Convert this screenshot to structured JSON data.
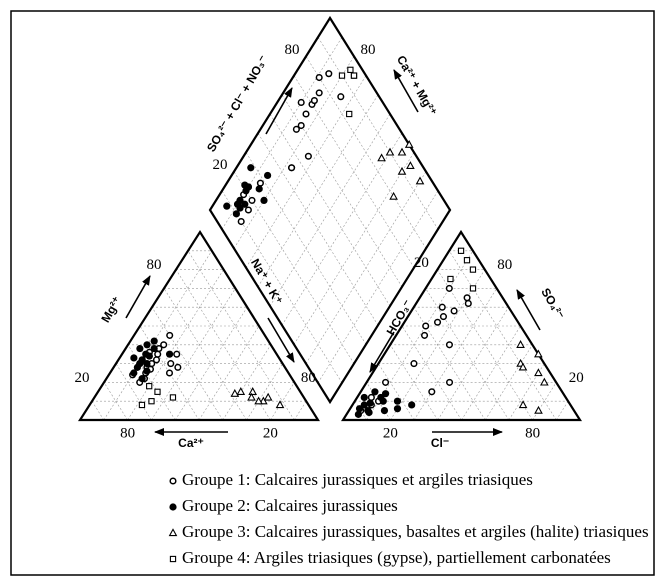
{
  "chart_data": {
    "type": "piper",
    "gridlines": [
      10,
      20,
      30,
      40,
      50,
      60,
      70,
      80,
      90
    ],
    "cation_triangle": {
      "mg_label": "Mg²⁺",
      "ca_label": "Ca²⁺",
      "nak_label": "Na⁺ + K⁺",
      "mg_ticks": [
        20,
        80
      ],
      "ca_ticks": [
        80,
        20
      ],
      "nak_ticks": [
        80
      ]
    },
    "anion_triangle": {
      "hco3_label": "HCO₃⁻",
      "so4_label": "SO₄²⁻",
      "cl_label": "Cl⁻",
      "hco3_ticks": [
        20
      ],
      "so4_ticks": [
        80,
        20
      ],
      "cl_ticks": [
        20,
        80
      ]
    },
    "diamond": {
      "left_label": "SO₄²⁻ + Cl⁻ + NO₃⁻",
      "right_label": "Ca²⁺ + Mg²⁺",
      "left_ticks": [
        80,
        20
      ],
      "right_ticks": [
        80
      ]
    },
    "series": [
      {
        "name": "Groupe 1: Calcaires jurassiques et argiles triasiques",
        "marker": "open-circle",
        "color": "#000000",
        "ca": [
          55,
          50,
          60,
          48,
          58,
          62,
          45,
          52,
          65,
          47,
          40,
          57,
          50,
          42,
          60,
          53,
          45,
          66
        ],
        "mg": [
          30,
          35,
          25,
          38,
          28,
          22,
          40,
          32,
          20,
          30,
          45,
          27,
          25,
          35,
          30,
          36,
          28,
          24
        ],
        "cl": [
          10,
          15,
          12,
          8,
          20,
          10,
          25,
          5,
          18,
          30,
          12,
          8,
          22,
          15,
          6,
          10,
          35,
          14
        ],
        "so4": [
          10,
          55,
          60,
          20,
          65,
          50,
          40,
          5,
          58,
          15,
          45,
          8,
          62,
          30,
          12,
          70,
          20,
          52
        ]
      },
      {
        "name": "Groupe 2: Calcaires jurassiques",
        "marker": "filled-circle",
        "color": "#000000",
        "ca": [
          58,
          55,
          62,
          50,
          60,
          52,
          65,
          57,
          48,
          63,
          54,
          59,
          45,
          61,
          56
        ],
        "mg": [
          32,
          35,
          28,
          38,
          30,
          40,
          25,
          30,
          42,
          22,
          34,
          26,
          35,
          33,
          38
        ],
        "cl": [
          5,
          8,
          10,
          4,
          12,
          6,
          15,
          7,
          3,
          20,
          9,
          25,
          11,
          5,
          18
        ],
        "so4": [
          8,
          5,
          12,
          6,
          10,
          15,
          5,
          9,
          12,
          6,
          4,
          8,
          14,
          3,
          10
        ]
      },
      {
        "name": "Groupe 3: Calcaires jurassiques, basaltes et argiles (halite) triasiques",
        "marker": "triangle",
        "color": "#000000",
        "ca": [
          25,
          20,
          22,
          18,
          15,
          28,
          12,
          20
        ],
        "mg": [
          15,
          15,
          12,
          10,
          12,
          14,
          8,
          10
        ],
        "cl": [
          60,
          70,
          65,
          75,
          72,
          80,
          55,
          62
        ],
        "so4": [
          30,
          25,
          35,
          20,
          8,
          5,
          40,
          28
        ]
      },
      {
        "name": "Groupe 4: Argiles triasiques (gypse), partiellement carbonatées",
        "marker": "square",
        "color": "#000000",
        "ca": [
          65,
          60,
          70,
          55,
          62
        ],
        "mg": [
          10,
          15,
          8,
          12,
          18
        ],
        "cl": [
          5,
          10,
          15,
          8,
          20
        ],
        "so4": [
          90,
          85,
          80,
          75,
          70
        ]
      }
    ]
  }
}
